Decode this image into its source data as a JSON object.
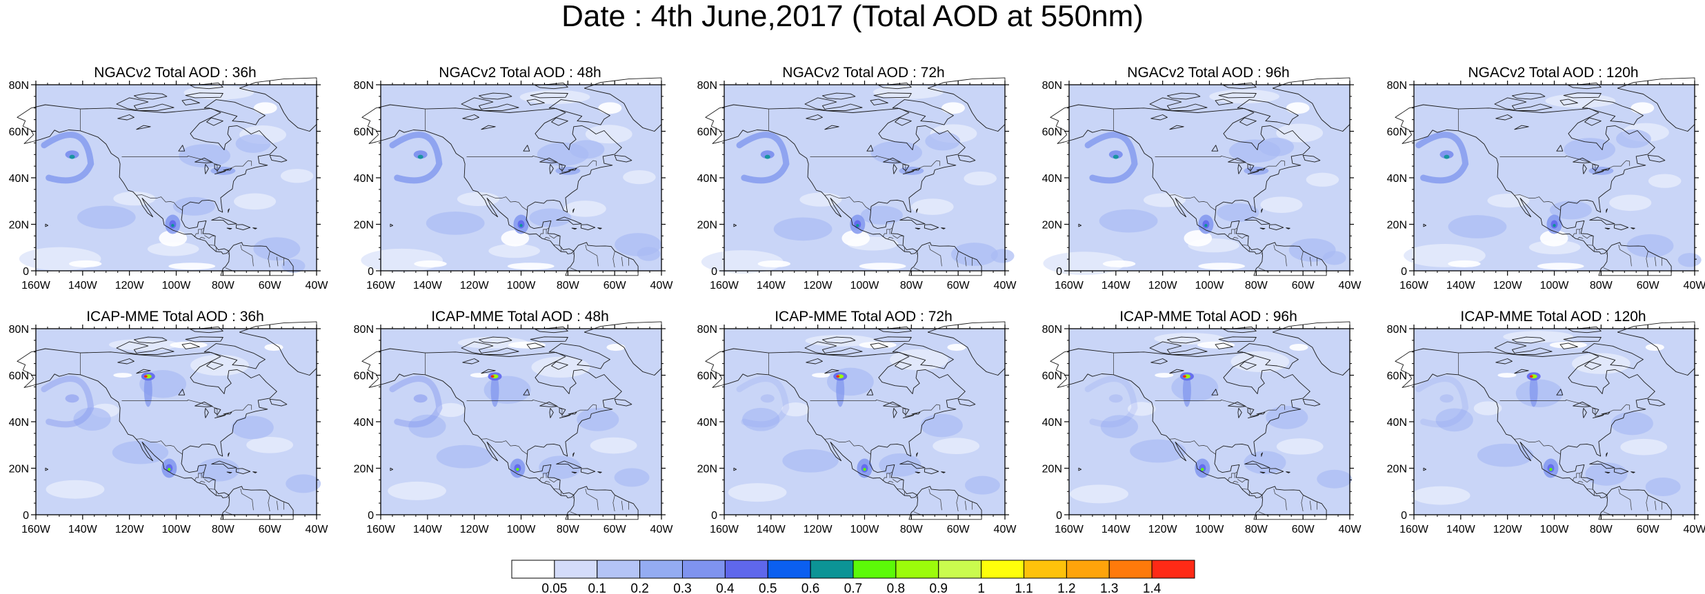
{
  "title": "Date : 4th June,2017 (Total AOD at 550nm)",
  "panels": [
    {
      "title": "NGACv2 Total AOD : 36h"
    },
    {
      "title": "NGACv2 Total AOD : 48h"
    },
    {
      "title": "NGACv2 Total AOD : 72h"
    },
    {
      "title": "NGACv2 Total AOD : 96h"
    },
    {
      "title": "NGACv2 Total AOD : 120h"
    },
    {
      "title": "ICAP-MME Total AOD : 36h"
    },
    {
      "title": "ICAP-MME Total AOD : 48h"
    },
    {
      "title": "ICAP-MME Total AOD : 72h"
    },
    {
      "title": "ICAP-MME Total AOD : 96h"
    },
    {
      "title": "ICAP-MME Total AOD : 120h"
    }
  ],
  "map": {
    "lon_range": [
      -160,
      -40
    ],
    "lat_range": [
      0,
      80
    ],
    "lon_ticks": [
      "160W",
      "140W",
      "120W",
      "100W",
      "80W",
      "60W",
      "40W"
    ],
    "lat_ticks": [
      "80N",
      "60N",
      "40N",
      "20N",
      "0"
    ]
  },
  "colorbar": {
    "labels": [
      "0.05",
      "0.1",
      "0.2",
      "0.3",
      "0.4",
      "0.5",
      "0.6",
      "0.7",
      "0.8",
      "0.9",
      "1",
      "1.1",
      "1.2",
      "1.3",
      "1.4"
    ],
    "colors": [
      "#ffffff",
      "#d4dcfa",
      "#b4c4f6",
      "#94acf2",
      "#7f93ef",
      "#5f67ec",
      "#0b5ff0",
      "#0c9496",
      "#5cfa08",
      "#9cfc0b",
      "#cafb4e",
      "#fefe0b",
      "#fec20b",
      "#fea40b",
      "#fe7a0b",
      "#fe2a16"
    ]
  }
}
